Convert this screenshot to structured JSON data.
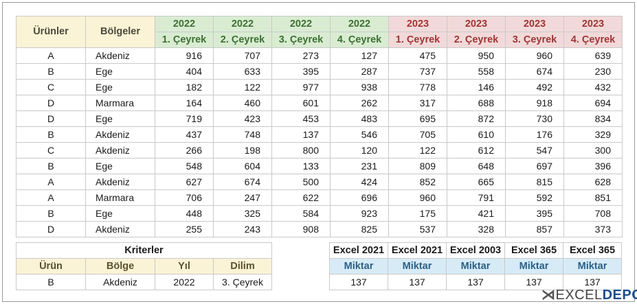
{
  "main": {
    "col_products": "Ürünler",
    "col_regions": "Bölgeler",
    "years": [
      "2022",
      "2022",
      "2022",
      "2022",
      "2023",
      "2023",
      "2023",
      "2023"
    ],
    "quarters": [
      "1. Çeyrek",
      "2. Çeyrek",
      "3. Çeyrek",
      "4. Çeyrek",
      "1. Çeyrek",
      "2. Çeyrek",
      "3. Çeyrek",
      "4. Çeyrek"
    ],
    "rows": [
      {
        "product": "A",
        "region": "Akdeniz",
        "v": [
          916,
          707,
          273,
          127,
          475,
          950,
          960,
          639
        ]
      },
      {
        "product": "B",
        "region": "Ege",
        "v": [
          404,
          633,
          395,
          287,
          737,
          558,
          674,
          230
        ]
      },
      {
        "product": "C",
        "region": "Ege",
        "v": [
          182,
          122,
          977,
          938,
          778,
          146,
          492,
          432
        ]
      },
      {
        "product": "D",
        "region": "Marmara",
        "v": [
          164,
          460,
          601,
          262,
          317,
          688,
          918,
          694
        ]
      },
      {
        "product": "D",
        "region": "Ege",
        "v": [
          719,
          423,
          453,
          483,
          695,
          872,
          730,
          834
        ]
      },
      {
        "product": "B",
        "region": "Akdeniz",
        "v": [
          437,
          748,
          137,
          546,
          705,
          610,
          176,
          329
        ]
      },
      {
        "product": "C",
        "region": "Akdeniz",
        "v": [
          266,
          198,
          800,
          120,
          122,
          612,
          547,
          300
        ]
      },
      {
        "product": "B",
        "region": "Ege",
        "v": [
          548,
          604,
          133,
          231,
          809,
          648,
          697,
          396
        ]
      },
      {
        "product": "A",
        "region": "Akdeniz",
        "v": [
          627,
          674,
          500,
          424,
          852,
          665,
          815,
          628
        ]
      },
      {
        "product": "A",
        "region": "Marmara",
        "v": [
          706,
          247,
          622,
          696,
          960,
          791,
          592,
          851
        ]
      },
      {
        "product": "B",
        "region": "Ege",
        "v": [
          448,
          325,
          584,
          923,
          175,
          421,
          395,
          708
        ]
      },
      {
        "product": "D",
        "region": "Akdeniz",
        "v": [
          255,
          243,
          908,
          825,
          537,
          328,
          857,
          373
        ]
      }
    ]
  },
  "criteria": {
    "title": "Kriterler",
    "headers": [
      "Ürün",
      "Bölge",
      "Yıl",
      "Dilim"
    ],
    "values": [
      "B",
      "Akdeniz",
      "2022",
      "3. Çeyrek"
    ]
  },
  "results": {
    "versions": [
      "Excel 2021",
      "Excel 2021",
      "Excel 2003",
      "Excel 365",
      "Excel 365"
    ],
    "label": "Miktar",
    "values": [
      "137",
      "137",
      "137",
      "137",
      "137"
    ]
  },
  "logo": {
    "mark": "⋊",
    "text": "EXCEL",
    "accent": "DEPO"
  },
  "colors": {
    "green_header": "#d9ecd2",
    "red_header": "#f2d9d9",
    "yellow_header": "#fbf3d6",
    "blue_header": "#d7ebf7"
  }
}
